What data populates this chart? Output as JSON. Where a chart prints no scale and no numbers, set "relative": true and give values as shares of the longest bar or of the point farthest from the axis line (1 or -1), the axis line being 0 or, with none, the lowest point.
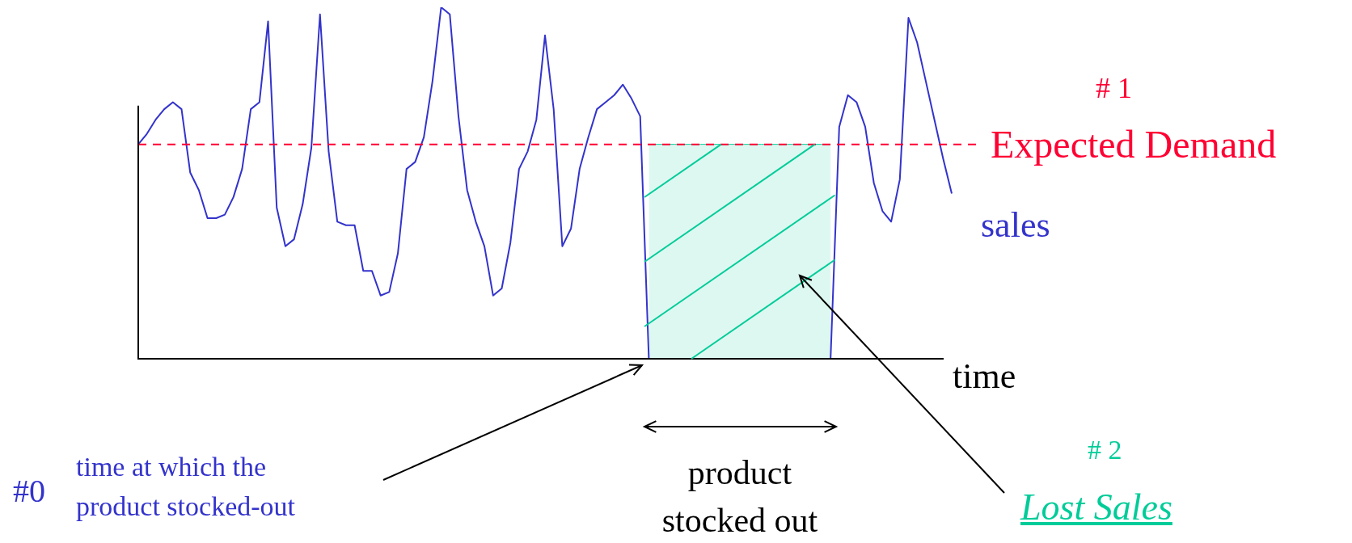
{
  "chart_data": {
    "type": "line",
    "relative": true,
    "xlabel": "time",
    "legend": false,
    "grid": false,
    "marker": "none",
    "line_style": "solid",
    "categories": [
      null,
      null,
      null,
      null,
      null,
      null,
      null,
      null,
      null,
      null,
      null,
      null,
      null,
      null,
      null,
      null,
      null,
      null,
      null,
      null,
      null,
      null,
      null,
      null,
      null,
      null,
      null,
      null,
      null,
      null,
      null,
      null,
      null,
      null,
      null,
      null,
      null,
      null,
      null,
      null,
      null,
      null,
      null,
      null,
      null,
      null,
      null,
      null,
      null,
      null,
      null,
      null,
      null,
      null,
      null,
      null,
      null,
      null,
      null,
      null,
      null,
      null,
      null,
      null,
      null,
      null,
      null,
      null,
      null,
      null,
      null,
      null,
      null,
      null,
      null,
      null,
      null,
      null,
      null,
      null,
      null,
      null,
      null,
      null,
      null,
      null,
      null,
      null,
      null,
      null,
      null,
      null,
      null,
      null,
      null
    ],
    "series": [
      {
        "name": "sales",
        "color": "#3333cc",
        "values": [
          0.61,
          0.64,
          0.68,
          0.71,
          0.73,
          0.71,
          0.53,
          0.48,
          0.4,
          0.4,
          0.41,
          0.46,
          0.54,
          0.71,
          0.73,
          0.96,
          0.43,
          0.32,
          0.34,
          0.44,
          0.6,
          0.98,
          0.59,
          0.39,
          0.38,
          0.38,
          0.25,
          0.25,
          0.18,
          0.19,
          0.3,
          0.54,
          0.56,
          0.63,
          0.79,
          1,
          0.98,
          0.69,
          0.48,
          0.39,
          0.32,
          0.18,
          0.2,
          0.33,
          0.54,
          0.59,
          0.68,
          0.92,
          0.71,
          0.32,
          0.37,
          0.54,
          0.63,
          0.71,
          0.73,
          0.75,
          0.78,
          0.74,
          0.69,
          0,
          0,
          0,
          0,
          0,
          0,
          0,
          0,
          0,
          0,
          0,
          0,
          0,
          0,
          0,
          0,
          0,
          0,
          0,
          0,
          0,
          0,
          0.66,
          0.75,
          0.73,
          0.66,
          0.5,
          0.42,
          0.39,
          0.51,
          0.97,
          0.9,
          0.79,
          0.68,
          0.57,
          0.47
        ]
      },
      {
        "type": "area",
        "color": "#00cc99",
        "values": [
          null,
          null,
          null,
          null,
          null,
          null,
          null,
          null,
          null,
          null,
          null,
          null,
          null,
          null,
          null,
          null,
          null,
          null,
          null,
          null,
          null,
          null,
          null,
          null,
          null,
          null,
          null,
          null,
          null,
          null,
          null,
          null,
          null,
          null,
          null,
          null,
          null,
          null,
          null,
          null,
          null,
          null,
          null,
          null,
          null,
          null,
          null,
          null,
          null,
          null,
          null,
          null,
          null,
          null,
          null,
          null,
          null,
          null,
          null,
          0.61,
          0.61,
          0.61,
          0.61,
          0.61,
          0.61,
          0.61,
          0.61,
          0.61,
          0.61,
          0.61,
          0.61,
          0.61,
          0.61,
          0.61,
          0.61,
          0.61,
          0.61,
          0.61,
          0.61,
          0.61,
          0.61,
          null,
          null,
          null,
          null,
          null,
          null,
          null,
          null,
          null,
          null,
          null,
          null,
          null,
          null
        ]
      }
    ],
    "ref_lines": [
      {
        "axis": "y",
        "value": 0.61,
        "label": "Expected Demand",
        "color": "#ff0033",
        "line_style": "dashed"
      }
    ],
    "annotations": [
      "# 1",
      "#0",
      "time at which the product stocked-out",
      "product stocked out",
      "# 2",
      "Lost Sales"
    ]
  }
}
